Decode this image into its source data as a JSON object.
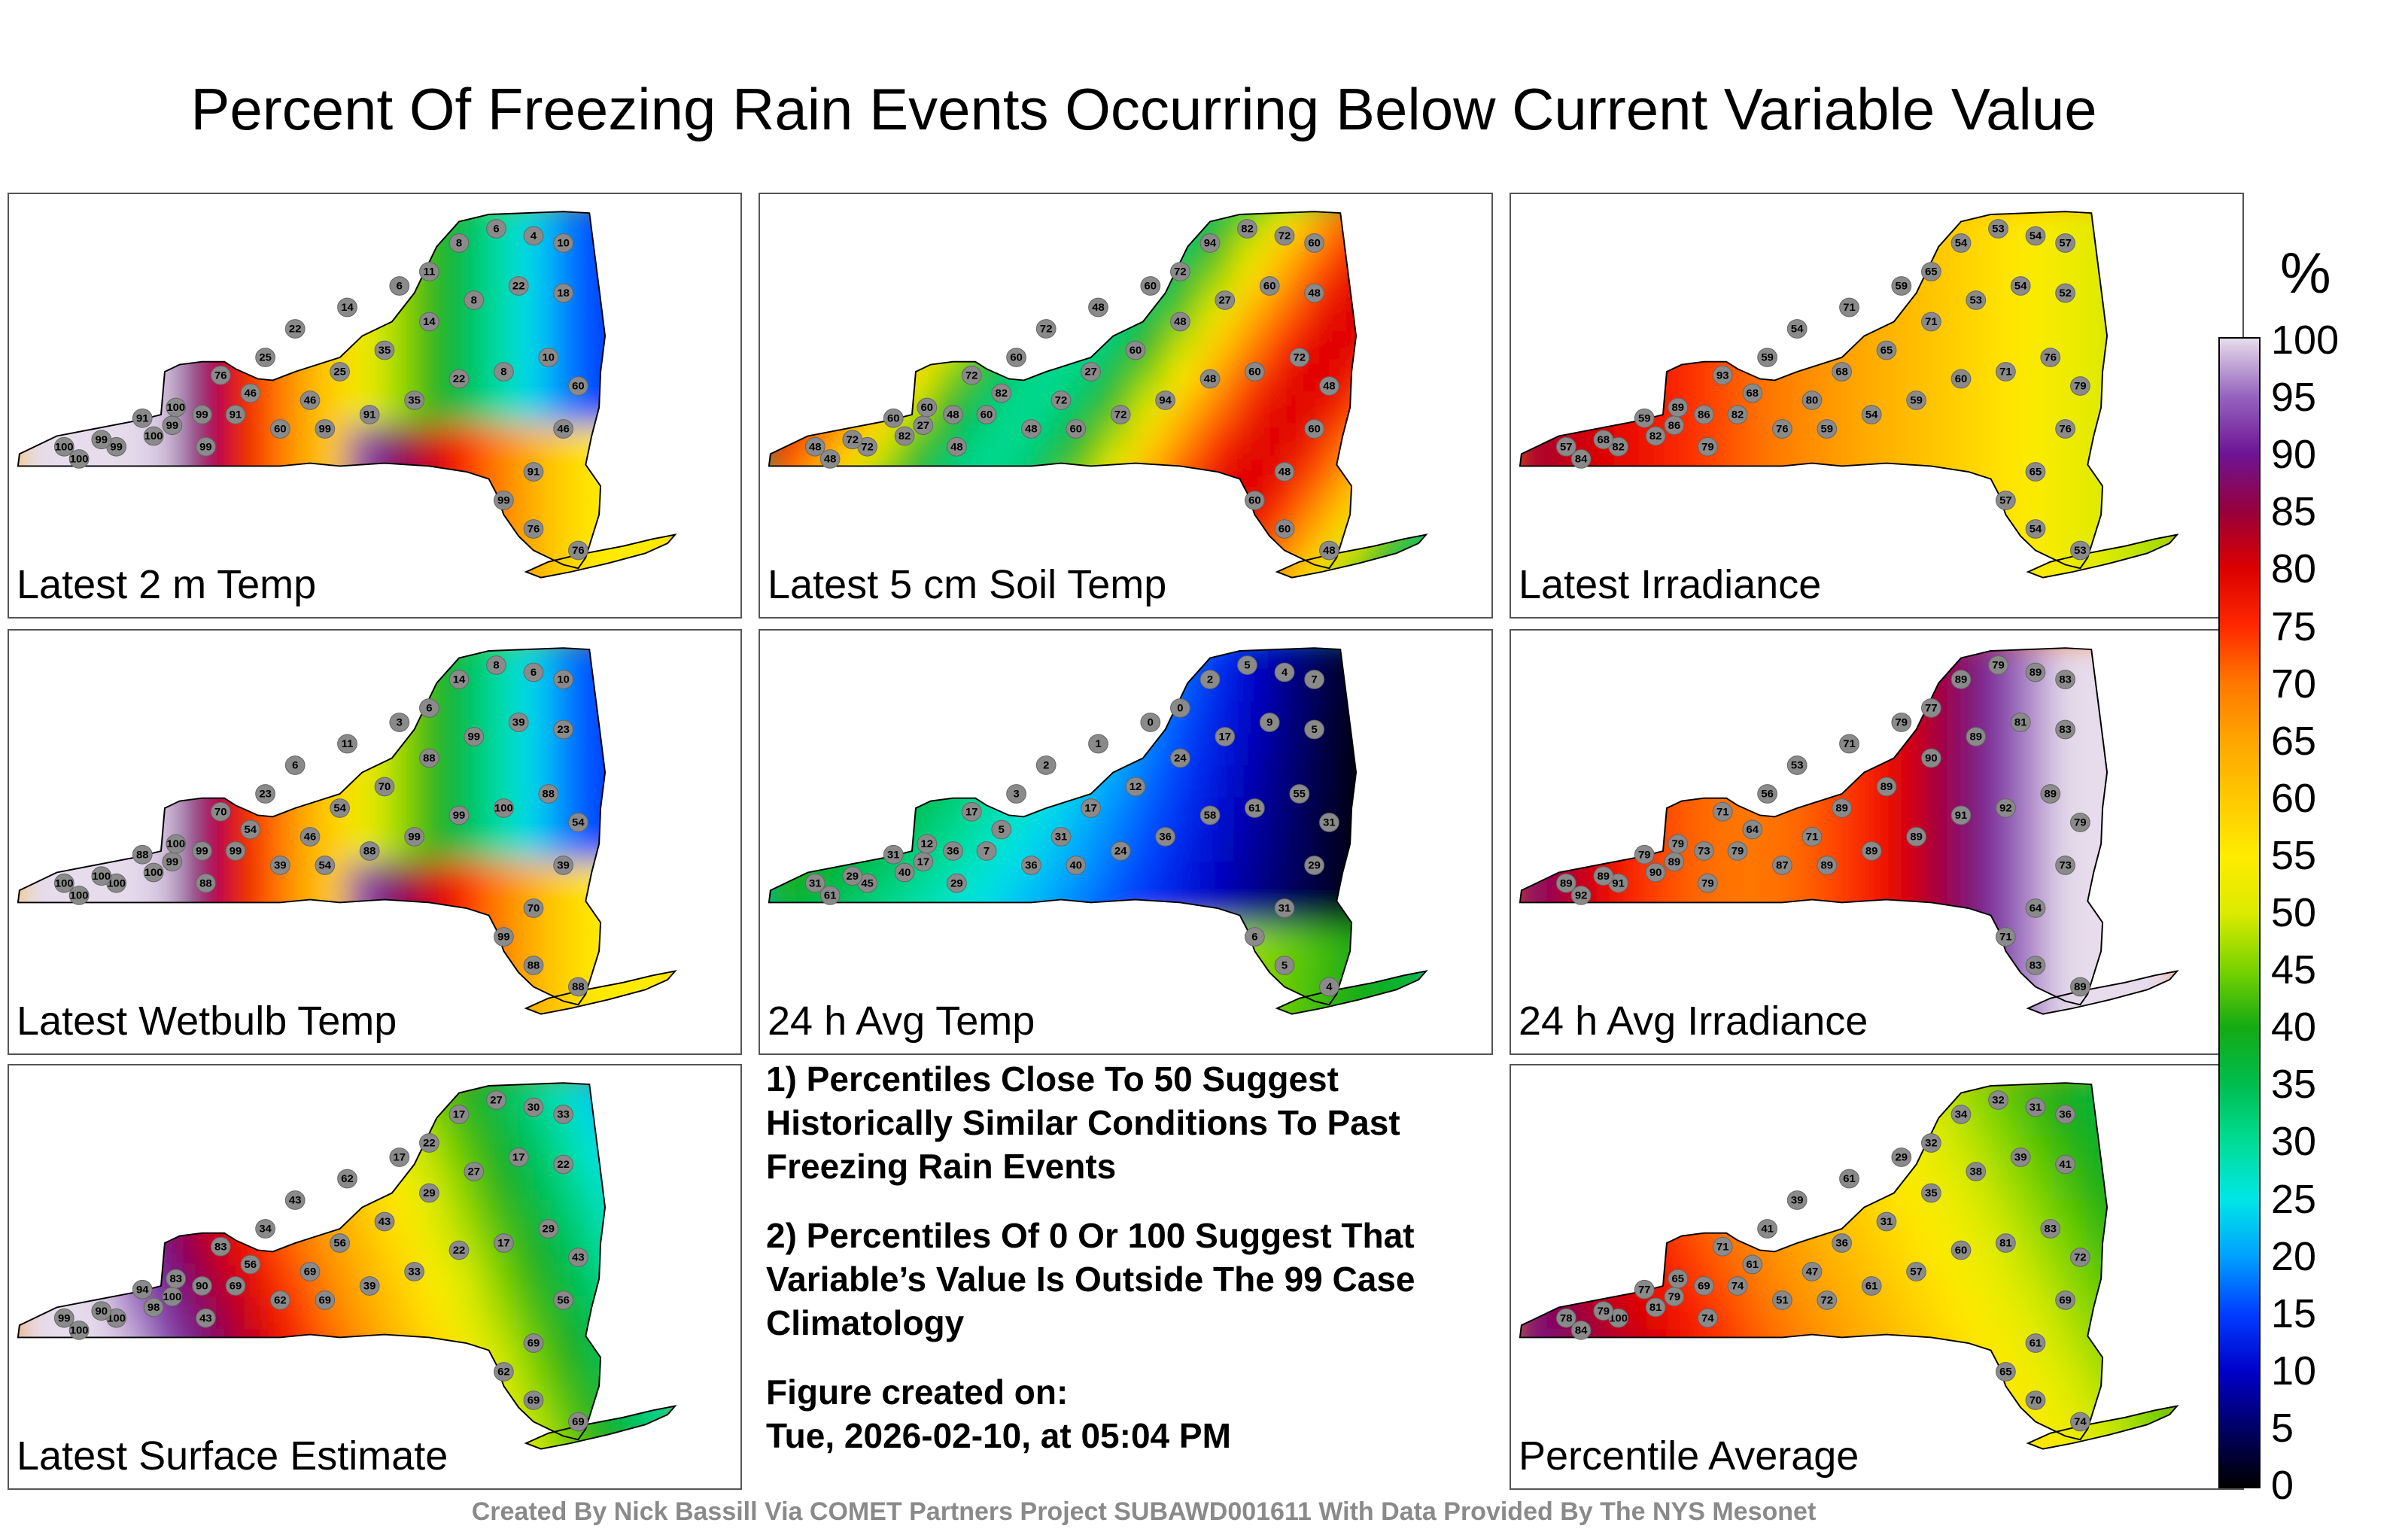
{
  "title": "Percent Of Freezing Rain Events Occurring Below Current Variable Value",
  "panels": [
    {
      "label": "Latest 2 m Temp",
      "scheme": "cold_east",
      "values": [
        100,
        99,
        100,
        99,
        100,
        91,
        99,
        99,
        100,
        99,
        76,
        91,
        46,
        25,
        22,
        14,
        6,
        11,
        8,
        6,
        4,
        10,
        18,
        22,
        8,
        14,
        35,
        25,
        46,
        60,
        99,
        91,
        35,
        22,
        8,
        10,
        60,
        46,
        91,
        99,
        76,
        76
      ]
    },
    {
      "label": "Latest 5 cm Soil Temp",
      "scheme": "mixed",
      "values": [
        48,
        72,
        82,
        72,
        48,
        60,
        27,
        48,
        60,
        48,
        72,
        60,
        82,
        60,
        72,
        48,
        60,
        72,
        94,
        82,
        72,
        60,
        48,
        60,
        27,
        48,
        60,
        27,
        72,
        48,
        60,
        72,
        94,
        48,
        60,
        72,
        48,
        60,
        48,
        60,
        60,
        48
      ]
    },
    {
      "label": "Latest Irradiance",
      "scheme": "warm_west",
      "values": [
        84,
        82,
        82,
        68,
        57,
        59,
        86,
        79,
        89,
        86,
        93,
        82,
        68,
        59,
        54,
        71,
        59,
        65,
        54,
        53,
        54,
        57,
        52,
        54,
        53,
        71,
        65,
        68,
        80,
        76,
        59,
        54,
        59,
        60,
        71,
        76,
        79,
        76,
        65,
        57,
        54,
        53
      ]
    },
    {
      "label": "Latest Wetbulb Temp",
      "scheme": "cold_east",
      "values": [
        100,
        100,
        100,
        100,
        100,
        88,
        99,
        88,
        100,
        99,
        70,
        99,
        54,
        23,
        6,
        11,
        3,
        6,
        14,
        8,
        6,
        10,
        23,
        39,
        99,
        88,
        70,
        54,
        46,
        39,
        54,
        88,
        99,
        99,
        100,
        88,
        54,
        39,
        70,
        99,
        88,
        88
      ]
    },
    {
      "label": "24 h Avg Temp",
      "scheme": "cold_all",
      "values": [
        61,
        45,
        40,
        29,
        31,
        31,
        17,
        29,
        12,
        36,
        17,
        7,
        5,
        3,
        2,
        1,
        0,
        0,
        2,
        5,
        4,
        7,
        5,
        9,
        17,
        24,
        12,
        17,
        31,
        36,
        40,
        24,
        36,
        58,
        61,
        55,
        31,
        29,
        31,
        6,
        5,
        4
      ]
    },
    {
      "label": "24 h Avg Irradiance",
      "scheme": "warm_all",
      "values": [
        92,
        91,
        90,
        89,
        89,
        79,
        89,
        79,
        79,
        73,
        71,
        79,
        64,
        56,
        53,
        71,
        79,
        77,
        89,
        79,
        89,
        83,
        83,
        81,
        89,
        90,
        89,
        89,
        71,
        87,
        89,
        89,
        89,
        91,
        92,
        89,
        79,
        73,
        64,
        71,
        83,
        89
      ]
    },
    {
      "label": "Latest Surface Estimate",
      "scheme": "surface",
      "values": [
        100,
        100,
        98,
        90,
        99,
        94,
        100,
        43,
        83,
        90,
        83,
        69,
        56,
        34,
        43,
        62,
        17,
        22,
        17,
        27,
        30,
        33,
        22,
        17,
        27,
        29,
        43,
        56,
        69,
        62,
        69,
        39,
        33,
        22,
        17,
        29,
        43,
        56,
        69,
        62,
        69,
        69
      ]
    },
    {
      "label": "Percentile Average",
      "scheme": "average",
      "values": [
        84,
        100,
        81,
        79,
        78,
        77,
        79,
        74,
        65,
        69,
        71,
        74,
        61,
        41,
        39,
        61,
        29,
        32,
        34,
        32,
        31,
        36,
        41,
        39,
        38,
        35,
        31,
        36,
        47,
        51,
        72,
        61,
        57,
        60,
        81,
        83,
        72,
        69,
        61,
        65,
        70,
        74
      ]
    }
  ],
  "notes": {
    "note1": "1) Percentiles Close To 50 Suggest Historically Similar Conditions To Past Freezing Rain Events",
    "note2": "2) Percentiles Of 0 Or 100 Suggest That Variable’s Value Is Outside The 99 Case Climatology",
    "created_label": "Figure created on:",
    "created_date": "Tue, 2026-02-10, at 05:04 PM"
  },
  "colorbar": {
    "unit": "%",
    "ticks": [
      "100",
      "95",
      "90",
      "85",
      "80",
      "75",
      "70",
      "65",
      "60",
      "55",
      "50",
      "45",
      "40",
      "35",
      "30",
      "25",
      "20",
      "15",
      "10",
      "5",
      "0"
    ]
  },
  "credit": "Created By Nick Bassill Via COMET Partners Project SUBAWD001611 With Data Provided By The NYS Mesonet"
}
